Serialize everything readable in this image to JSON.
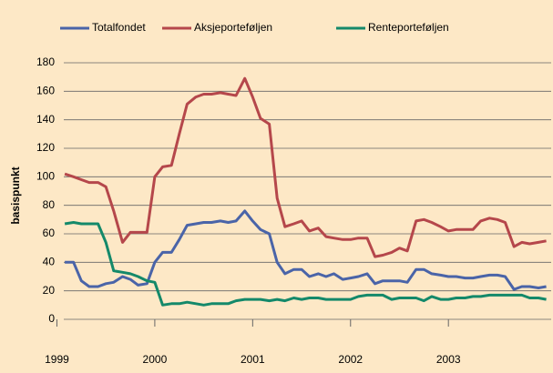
{
  "chart_data": {
    "type": "line",
    "ylabel": "basispunkt",
    "x": [
      1999.08,
      1999.17,
      1999.25,
      1999.33,
      1999.42,
      1999.5,
      1999.58,
      1999.67,
      1999.75,
      1999.83,
      1999.92,
      2000.0,
      2000.08,
      2000.17,
      2000.25,
      2000.33,
      2000.42,
      2000.5,
      2000.58,
      2000.67,
      2000.75,
      2000.83,
      2000.92,
      2001.0,
      2001.08,
      2001.17,
      2001.25,
      2001.33,
      2001.42,
      2001.5,
      2001.58,
      2001.67,
      2001.75,
      2001.83,
      2001.92,
      2002.0,
      2002.08,
      2002.17,
      2002.25,
      2002.33,
      2002.42,
      2002.5,
      2002.58,
      2002.67,
      2002.75,
      2002.83,
      2002.92,
      2003.0,
      2003.08,
      2003.17,
      2003.25,
      2003.33,
      2003.42,
      2003.5,
      2003.58,
      2003.67,
      2003.75,
      2003.83,
      2003.92,
      2004.0
    ],
    "series": [
      {
        "name": "Totalfondet",
        "color": "#4a64a8",
        "values": [
          40,
          40,
          27,
          23,
          23,
          25,
          26,
          30,
          28,
          24,
          25,
          40,
          47,
          47,
          56,
          66,
          67,
          68,
          68,
          69,
          68,
          69,
          76,
          69,
          63,
          60,
          40,
          32,
          35,
          35,
          30,
          32,
          30,
          32,
          28,
          29,
          30,
          32,
          25,
          27,
          27,
          27,
          26,
          35,
          35,
          32,
          31,
          30,
          30,
          29,
          29,
          30,
          31,
          31,
          30,
          21,
          23,
          23,
          22,
          23
        ]
      },
      {
        "name": "Aksjeporteføljen",
        "color": "#b5474b",
        "values": [
          102,
          100,
          98,
          96,
          96,
          93,
          76,
          54,
          61,
          61,
          61,
          100,
          107,
          108,
          130,
          151,
          156,
          158,
          158,
          159,
          158,
          157,
          169,
          156,
          141,
          137,
          85,
          65,
          67,
          69,
          62,
          64,
          58,
          57,
          56,
          56,
          57,
          57,
          44,
          45,
          47,
          50,
          48,
          69,
          70,
          68,
          65,
          62,
          63,
          63,
          63,
          69,
          71,
          70,
          68,
          51,
          54,
          53,
          54,
          55
        ]
      },
      {
        "name": "Renteporteføljen",
        "color": "#14896a",
        "values": [
          67,
          68,
          67,
          67,
          67,
          54,
          34,
          33,
          32,
          30,
          27,
          26,
          10,
          11,
          11,
          12,
          11,
          10,
          11,
          11,
          11,
          13,
          14,
          14,
          14,
          13,
          14,
          13,
          15,
          14,
          15,
          15,
          14,
          14,
          14,
          14,
          16,
          17,
          17,
          17,
          14,
          15,
          15,
          15,
          13,
          16,
          14,
          14,
          15,
          15,
          16,
          16,
          17,
          17,
          17,
          17,
          17,
          15,
          15,
          14
        ]
      }
    ],
    "xlim": [
      1999.07,
      2004.05
    ],
    "xticks": [
      1999,
      2000,
      2001,
      2002,
      2003
    ],
    "ylim": [
      0,
      180
    ],
    "yticks": [
      0,
      20,
      40,
      60,
      80,
      100,
      120,
      140,
      160,
      180
    ],
    "grid": true,
    "legend": "top"
  }
}
